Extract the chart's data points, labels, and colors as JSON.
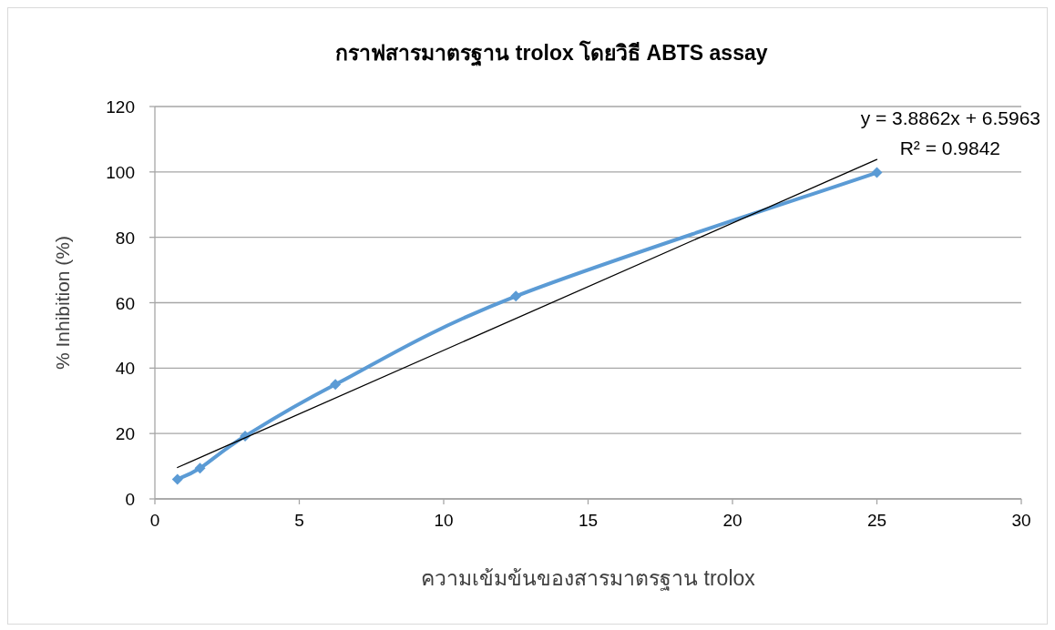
{
  "chart_data": {
    "type": "line",
    "title": "กราฟสารมาตรฐาน trolox โดยวิธี ABTS assay",
    "xlabel": "ความเข้มข้นของสารมาตรฐาน trolox",
    "ylabel": "% Inhibition (%)",
    "xlim": [
      0,
      30
    ],
    "xticks": [
      0,
      5,
      10,
      15,
      20,
      25,
      30
    ],
    "ylim": [
      0,
      120
    ],
    "yticks": [
      0,
      20,
      40,
      60,
      80,
      100,
      120
    ],
    "grid": "y",
    "series": [
      {
        "color": "#5b9bd5",
        "marker": "diamond",
        "x": [
          0.78125,
          1.5625,
          3.125,
          6.25,
          12.5,
          25
        ],
        "values": [
          6,
          9.4,
          19.2,
          35,
          62,
          99.8
        ]
      },
      {
        "color": "#000000",
        "marker": "none",
        "x": [
          0.78125,
          25
        ],
        "values": [
          9.6,
          103.8
        ]
      }
    ],
    "annotations": [
      "y = 3.8862x + 6.5963",
      "R² = 0.9842"
    ]
  }
}
